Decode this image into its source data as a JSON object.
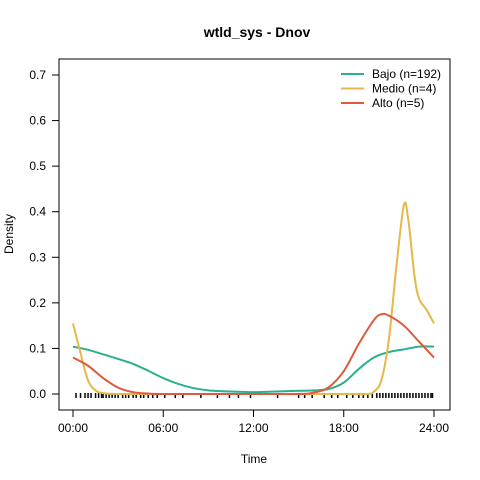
{
  "chart_data": {
    "type": "line",
    "title": "wtld_sys - Dnov",
    "xlabel": "Time",
    "ylabel": "Density",
    "xlim": [
      0,
      24
    ],
    "ylim": [
      0,
      0.7
    ],
    "x_ticks": [
      {
        "value": 0,
        "label": "00:00"
      },
      {
        "value": 6,
        "label": "06:00"
      },
      {
        "value": 12,
        "label": "12:00"
      },
      {
        "value": 18,
        "label": "18:00"
      },
      {
        "value": 24,
        "label": "24:00"
      }
    ],
    "y_ticks": [
      {
        "value": 0.0,
        "label": "0.0"
      },
      {
        "value": 0.1,
        "label": "0.1"
      },
      {
        "value": 0.2,
        "label": "0.2"
      },
      {
        "value": 0.3,
        "label": "0.3"
      },
      {
        "value": 0.4,
        "label": "0.4"
      },
      {
        "value": 0.5,
        "label": "0.5"
      },
      {
        "value": 0.6,
        "label": "0.6"
      },
      {
        "value": 0.7,
        "label": "0.7"
      }
    ],
    "grid": false,
    "legend_position": "top-right",
    "series": [
      {
        "name": "Bajo (n=192)",
        "color": "#2bb08f",
        "points": [
          [
            0,
            0.104
          ],
          [
            1,
            0.097
          ],
          [
            2,
            0.087
          ],
          [
            3,
            0.077
          ],
          [
            4,
            0.066
          ],
          [
            5,
            0.051
          ],
          [
            6,
            0.035
          ],
          [
            7,
            0.022
          ],
          [
            8,
            0.013
          ],
          [
            9,
            0.008
          ],
          [
            10,
            0.006
          ],
          [
            11,
            0.005
          ],
          [
            12,
            0.004
          ],
          [
            13,
            0.005
          ],
          [
            14,
            0.006
          ],
          [
            15,
            0.007
          ],
          [
            16,
            0.008
          ],
          [
            17,
            0.011
          ],
          [
            18,
            0.025
          ],
          [
            19,
            0.055
          ],
          [
            20,
            0.08
          ],
          [
            21,
            0.092
          ],
          [
            22,
            0.098
          ],
          [
            23,
            0.104
          ],
          [
            24,
            0.104
          ]
        ]
      },
      {
        "name": "Medio (n=4)",
        "color": "#e6b84a",
        "points": [
          [
            0,
            0.155
          ],
          [
            0.5,
            0.09
          ],
          [
            1,
            0.03
          ],
          [
            1.5,
            0.008
          ],
          [
            2,
            0.002
          ],
          [
            3,
            0.0
          ],
          [
            6,
            0.0
          ],
          [
            12,
            0.0
          ],
          [
            18,
            0.0
          ],
          [
            19.5,
            0.0
          ],
          [
            20,
            0.005
          ],
          [
            20.5,
            0.03
          ],
          [
            21,
            0.12
          ],
          [
            21.5,
            0.28
          ],
          [
            22,
            0.415
          ],
          [
            22.3,
            0.38
          ],
          [
            22.7,
            0.26
          ],
          [
            23,
            0.21
          ],
          [
            23.5,
            0.185
          ],
          [
            24,
            0.155
          ]
        ]
      },
      {
        "name": "Alto (n=5)",
        "color": "#dd5a3c",
        "points": [
          [
            0,
            0.08
          ],
          [
            1,
            0.062
          ],
          [
            2,
            0.035
          ],
          [
            3,
            0.014
          ],
          [
            4,
            0.004
          ],
          [
            5,
            0.001
          ],
          [
            6,
            0.0
          ],
          [
            12,
            0.0
          ],
          [
            15,
            0.0
          ],
          [
            16,
            0.003
          ],
          [
            17,
            0.015
          ],
          [
            18,
            0.05
          ],
          [
            19,
            0.11
          ],
          [
            20,
            0.162
          ],
          [
            20.5,
            0.175
          ],
          [
            21,
            0.172
          ],
          [
            22,
            0.15
          ],
          [
            23,
            0.115
          ],
          [
            24,
            0.08
          ]
        ]
      }
    ],
    "rug": [
      0.2,
      0.5,
      0.8,
      1.0,
      1.2,
      1.5,
      1.7,
      1.9,
      2.0,
      2.2,
      2.4,
      2.6,
      2.8,
      3.0,
      3.3,
      3.5,
      3.7,
      4.0,
      4.2,
      4.5,
      4.7,
      5.0,
      5.3,
      5.6,
      6.1,
      6.8,
      7.3,
      8.5,
      9.6,
      10.4,
      11.0,
      11.8,
      13.6,
      15.0,
      15.4,
      15.9,
      16.7,
      17.2,
      17.6,
      18.2,
      18.6,
      19.0,
      19.3,
      19.6,
      19.9,
      20.2,
      20.4,
      20.6,
      20.8,
      21.0,
      21.2,
      21.4,
      21.6,
      21.8,
      22.0,
      22.2,
      22.4,
      22.6,
      22.8,
      23.0,
      23.2,
      23.4,
      23.6,
      23.8,
      23.9
    ]
  }
}
